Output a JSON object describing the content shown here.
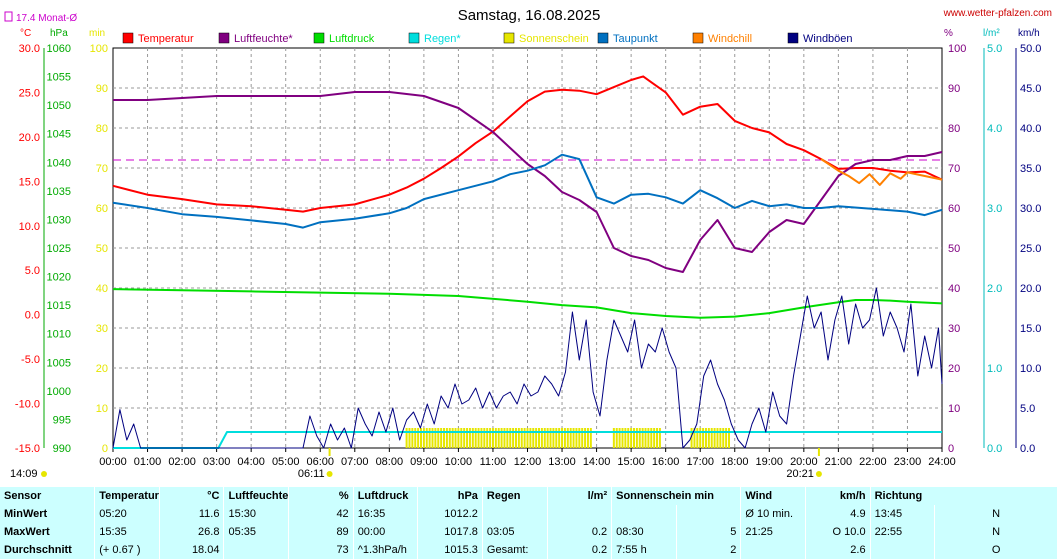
{
  "header": {
    "title": "Samstag, 16.08.2025",
    "brand": "www.wetter-pfalzen.com",
    "monthly_avg_label": "17.4 Monat-Ø"
  },
  "units": {
    "temp": "°C",
    "pressure": "hPa",
    "sun": "min",
    "humidity": "%",
    "rain": "l/m²",
    "wind": "km/h"
  },
  "legend": [
    {
      "label": "Temperatur",
      "color": "#ff0000"
    },
    {
      "label": "Luftfeuchte*",
      "color": "#800080"
    },
    {
      "label": "Luftdruck",
      "color": "#00dd00"
    },
    {
      "label": "Regen*",
      "color": "#00dddd"
    },
    {
      "label": "Sonnenschein",
      "color": "#e6e600"
    },
    {
      "label": "Taupunkt",
      "color": "#0070c0"
    },
    {
      "label": "Windchill",
      "color": "#ff8000"
    },
    {
      "label": "Windböen",
      "color": "#000080"
    }
  ],
  "chart_data": {
    "type": "line",
    "title": "Samstag, 16.08.2025",
    "x_ticks": [
      "00:00",
      "01:00",
      "02:00",
      "03:00",
      "04:00",
      "05:00",
      "06:00",
      "07:00",
      "08:00",
      "09:00",
      "10:00",
      "11:00",
      "12:00",
      "13:00",
      "14:00",
      "15:00",
      "16:00",
      "17:00",
      "18:00",
      "19:00",
      "20:00",
      "21:00",
      "22:00",
      "23:00",
      "24:00"
    ],
    "sun_marks": {
      "sunrise": "06:11",
      "sunset": "20:21",
      "moonrise": "14:09"
    },
    "axes": {
      "temp": {
        "min": -15,
        "max": 30,
        "ticks": [
          "30.0",
          "25.0",
          "20.0",
          "15.0",
          "10.0",
          "5.0",
          "0.0",
          "-5.0",
          "-10.0",
          "-15.0"
        ]
      },
      "pressure": {
        "min": 990,
        "max": 1060,
        "ticks": [
          "1060",
          "1055",
          "1050",
          "1045",
          "1040",
          "1035",
          "1030",
          "1025",
          "1020",
          "1015",
          "1010",
          "1005",
          "1000",
          "995",
          "990"
        ]
      },
      "sun": {
        "min": 0,
        "max": 100,
        "ticks": [
          "100",
          "90",
          "80",
          "70",
          "60",
          "50",
          "40",
          "30",
          "20",
          "10",
          "0"
        ]
      },
      "humidity": {
        "min": 0,
        "max": 100,
        "ticks": [
          "100",
          "90",
          "80",
          "70",
          "60",
          "50",
          "40",
          "30",
          "20",
          "10",
          "0"
        ]
      },
      "rain": {
        "min": 0,
        "max": 5,
        "ticks": [
          "5.0",
          "4.0",
          "3.0",
          "2.0",
          "1.0",
          "0.0"
        ]
      },
      "wind": {
        "min": 0,
        "max": 50,
        "ticks": [
          "50.0",
          "45.0",
          "40.0",
          "35.0",
          "30.0",
          "25.0",
          "20.0",
          "15.0",
          "10.0",
          "5.0",
          "0.0"
        ]
      }
    },
    "monthly_avg_temp": 17.4,
    "grid": true,
    "series": [
      {
        "name": "Temperatur",
        "axis": "temp",
        "color": "#ff0000",
        "x": [
          0,
          1,
          2,
          3,
          4,
          5,
          5.5,
          6,
          7,
          8,
          8.5,
          9,
          9.5,
          10,
          10.5,
          11,
          11.5,
          12,
          12.5,
          13,
          13.5,
          14,
          14.5,
          15,
          15.35,
          15.6,
          16,
          16.5,
          17,
          17.5,
          18,
          18.5,
          19,
          19.5,
          20,
          20.5,
          21,
          21.5,
          22,
          22.5,
          23,
          23.5,
          24
        ],
        "y": [
          14.5,
          13.5,
          13.0,
          12.4,
          12.2,
          11.8,
          11.6,
          12.0,
          12.4,
          13.5,
          14.3,
          15.3,
          16.5,
          17.8,
          19.3,
          20.6,
          22.3,
          24.0,
          25.1,
          25.3,
          25.2,
          24.8,
          25.6,
          26.4,
          26.8,
          26.1,
          25.0,
          22.5,
          23.4,
          23.7,
          21.8,
          21.0,
          20.5,
          19.2,
          18.5,
          17.5,
          16.4,
          16.5,
          16.5,
          16.2,
          16.0,
          16.1,
          15.2
        ]
      },
      {
        "name": "Luftfeuchte*",
        "axis": "humidity",
        "color": "#800080",
        "x": [
          0,
          1,
          2,
          3,
          4,
          5,
          5.58,
          6,
          7,
          8,
          9,
          10,
          10.5,
          11,
          11.5,
          12,
          12.5,
          13,
          13.5,
          14,
          14.5,
          15,
          15.5,
          16,
          16.5,
          17,
          17.5,
          18,
          18.5,
          19,
          19.5,
          20,
          20.5,
          21,
          21.5,
          22,
          22.5,
          23,
          23.5,
          24
        ],
        "y": [
          87,
          87,
          87.5,
          88,
          88,
          88,
          88,
          88,
          89,
          89,
          88,
          85,
          82,
          79,
          75,
          71,
          68,
          64,
          62,
          59,
          50,
          48,
          47,
          45,
          44,
          52,
          57,
          50,
          49,
          54,
          57,
          56,
          62,
          68,
          71,
          72,
          72,
          73,
          73,
          74
        ]
      },
      {
        "name": "Luftdruck",
        "axis": "pressure",
        "color": "#00dd00",
        "x": [
          0,
          2,
          4,
          6,
          8,
          10,
          12,
          13,
          14,
          15,
          16,
          17,
          18,
          19,
          20,
          21,
          21.5,
          22,
          22.5,
          23,
          24
        ],
        "y": [
          1017.8,
          1017.6,
          1017.4,
          1017.2,
          1017.0,
          1016.6,
          1015.6,
          1015.0,
          1014.6,
          1013.6,
          1013.1,
          1012.8,
          1013.0,
          1013.6,
          1014.6,
          1015.5,
          1015.9,
          1015.9,
          1015.8,
          1015.6,
          1015.3
        ]
      },
      {
        "name": "Taupunkt",
        "axis": "temp",
        "color": "#0070c0",
        "x": [
          0,
          1,
          2,
          3,
          4,
          5,
          5.5,
          6,
          7,
          8,
          8.5,
          9,
          10,
          11,
          11.5,
          12,
          12.5,
          13,
          13.5,
          14,
          14.5,
          15,
          15.5,
          16,
          16.5,
          17,
          17.5,
          18,
          18.5,
          19,
          19.5,
          20,
          20.5,
          21,
          22,
          23,
          23.5,
          24
        ],
        "y": [
          12.6,
          12.0,
          11.3,
          11.0,
          10.6,
          10.2,
          9.8,
          10.4,
          10.8,
          11.4,
          12.0,
          13.0,
          14.0,
          15.0,
          15.8,
          16.2,
          16.8,
          18.0,
          17.5,
          13.2,
          12.5,
          13.5,
          13.6,
          13.2,
          12.5,
          14.0,
          13.1,
          12.0,
          12.8,
          12.2,
          12.4,
          12.0,
          12.0,
          12.2,
          11.9,
          11.6,
          11.2,
          11.8
        ]
      },
      {
        "name": "Windchill",
        "axis": "temp",
        "color": "#ff8000",
        "x": [
          20.5,
          21,
          21.3,
          21.6,
          21.9,
          22.2,
          22.5,
          22.8,
          23,
          24
        ],
        "y": [
          17.5,
          16.2,
          15.6,
          14.8,
          15.8,
          14.6,
          15.9,
          15.3,
          16.0,
          15.2
        ]
      },
      {
        "name": "Regen*",
        "axis": "rain",
        "color": "#00dddd",
        "x": [
          0,
          3.05,
          3.3,
          4,
          24
        ],
        "y": [
          0,
          0,
          0.2,
          0.2,
          0.2
        ]
      },
      {
        "name": "Windböen",
        "axis": "wind",
        "color": "#000080",
        "x": [
          0,
          0.2,
          0.4,
          0.6,
          0.8,
          1,
          3,
          5.5,
          5.7,
          5.9,
          6.1,
          6.3,
          6.5,
          6.7,
          6.9,
          7.1,
          7.3,
          7.5,
          7.7,
          7.9,
          8.1,
          8.3,
          8.5,
          8.7,
          8.9,
          9.1,
          9.3,
          9.5,
          9.7,
          9.9,
          10.1,
          10.3,
          10.5,
          10.7,
          10.9,
          11.1,
          11.3,
          11.5,
          11.7,
          11.9,
          12.1,
          12.3,
          12.5,
          12.7,
          12.9,
          13.1,
          13.3,
          13.5,
          13.7,
          13.9,
          14.1,
          14.3,
          14.5,
          14.7,
          14.9,
          15.1,
          15.3,
          15.5,
          15.7,
          15.9,
          16.1,
          16.3,
          16.5,
          16.7,
          16.9,
          17.1,
          17.3,
          17.5,
          17.7,
          17.9,
          18.1,
          18.3,
          18.5,
          18.7,
          18.9,
          19.1,
          19.3,
          19.5,
          19.7,
          19.9,
          20.1,
          20.3,
          20.5,
          20.7,
          20.9,
          21.1,
          21.3,
          21.5,
          21.7,
          21.9,
          22.1,
          22.3,
          22.5,
          22.7,
          22.9,
          23.1,
          23.3,
          23.5,
          23.7,
          23.9,
          24
        ],
        "y": [
          0,
          4.8,
          1,
          3,
          0,
          0,
          0,
          0,
          4,
          1.5,
          0,
          3,
          1,
          2.5,
          0,
          5,
          3,
          1.5,
          4.5,
          2,
          5,
          1,
          3.5,
          4.5,
          2.5,
          5.5,
          3,
          6.5,
          5,
          8,
          5.5,
          6,
          7.5,
          5,
          7,
          5,
          6.5,
          7,
          5.5,
          8,
          6.5,
          7,
          9,
          8,
          6.5,
          9.5,
          17,
          11,
          16,
          7,
          4,
          11,
          16,
          14,
          12,
          16,
          10,
          13,
          12,
          15,
          12,
          10,
          0,
          1,
          3,
          9,
          11,
          8,
          6,
          3,
          1,
          0,
          3,
          5,
          2,
          7,
          4,
          3,
          9,
          14,
          19,
          15,
          17,
          11,
          16,
          19,
          13,
          18,
          15,
          16,
          20,
          14,
          17,
          15,
          12,
          18,
          9,
          14,
          10,
          15,
          8
        ]
      }
    ],
    "sunshine_segments": [
      [
        "08:30",
        "13:55"
      ],
      [
        "14:30",
        "15:55"
      ],
      [
        "16:45",
        "17:50"
      ]
    ]
  },
  "stats": {
    "headers": [
      {
        "name": "Sensor",
        "unit": ""
      },
      {
        "name": "Temperatur",
        "unit": "°C"
      },
      {
        "name": "Luftfeuchte",
        "unit": "%"
      },
      {
        "name": "Luftdruck",
        "unit": "hPa"
      },
      {
        "name": "Regen",
        "unit": "l/m²"
      },
      {
        "name": "Sonnenschein min",
        "unit": ""
      },
      {
        "name": "Wind",
        "unit": "km/h"
      },
      {
        "name": "Richtung",
        "unit": ""
      }
    ],
    "rows": [
      {
        "label": "MinWert",
        "cells": [
          [
            "05:20",
            "11.6"
          ],
          [
            "15:30",
            "42"
          ],
          [
            "16:35",
            "1012.2"
          ],
          [
            "",
            ""
          ],
          [
            "",
            ""
          ],
          [
            "Ø 10 min.",
            "4.9"
          ],
          [
            "13:45",
            "N"
          ]
        ]
      },
      {
        "label": "MaxWert",
        "cells": [
          [
            "15:35",
            "26.8"
          ],
          [
            "05:35",
            "89"
          ],
          [
            "00:00",
            "1017.8"
          ],
          [
            "03:05",
            "0.2"
          ],
          [
            "08:30",
            "5"
          ],
          [
            "21:25",
            "O 10.0"
          ],
          [
            "22:55",
            "N"
          ]
        ]
      },
      {
        "label": "Durchschnitt",
        "cells": [
          [
            "(+ 0.67 )",
            "18.04"
          ],
          [
            "",
            "73"
          ],
          [
            "^1.3hPa/h",
            "1015.3"
          ],
          [
            "Gesamt:",
            "0.2"
          ],
          [
            "7:55 h",
            "2"
          ],
          [
            "",
            "2.6"
          ],
          [
            "",
            "O"
          ]
        ]
      }
    ]
  }
}
